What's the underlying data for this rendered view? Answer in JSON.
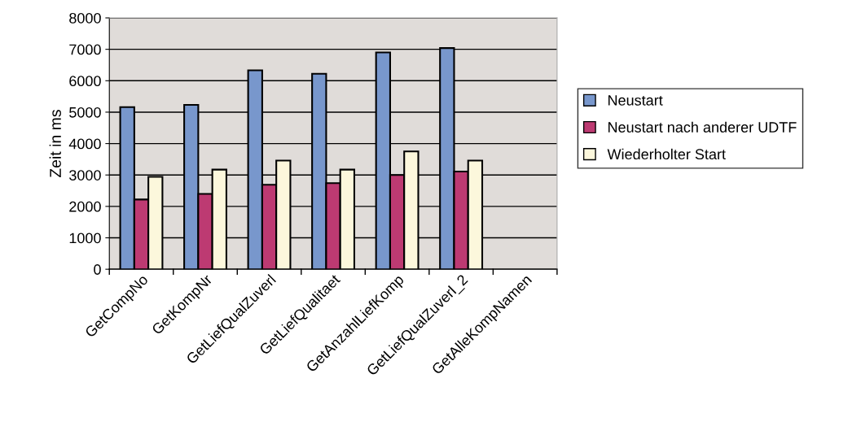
{
  "chart_data": {
    "type": "bar",
    "ylabel": "Zeit in ms",
    "categories": [
      "GetCompNo",
      "GetKompNr",
      "GetLiefQualZuverl",
      "GetLiefQualitaet",
      "GetAnzahlLiefKomp",
      "GetLiefQualZuverl_2",
      "GetAlleKompNamen"
    ],
    "series": [
      {
        "name": "Neustart",
        "color": "#7897cc",
        "values": [
          5160,
          5230,
          6330,
          6220,
          6900,
          7040,
          null
        ]
      },
      {
        "name": "Neustart nach anderer UDTF",
        "color": "#bd3a72",
        "values": [
          2220,
          2400,
          2690,
          2740,
          3000,
          3110,
          null
        ]
      },
      {
        "name": "Wiederholter Start",
        "color": "#fcf7dc",
        "values": [
          2940,
          3170,
          3460,
          3170,
          3750,
          3460,
          null
        ]
      }
    ],
    "ylim": [
      0,
      8000
    ],
    "yticks": [
      0,
      1000,
      2000,
      3000,
      4000,
      5000,
      6000,
      7000,
      8000
    ],
    "grid": "y",
    "legend": "right"
  }
}
